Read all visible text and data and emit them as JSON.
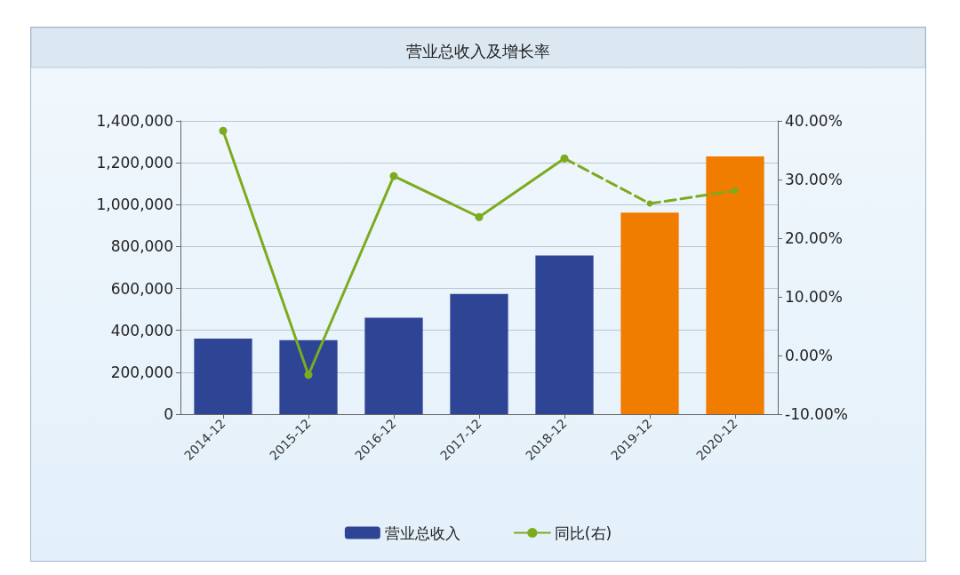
{
  "chart_data": {
    "type": "bar",
    "title": "营业总收入及增长率",
    "categories": [
      "2014-12",
      "2015-12",
      "2016-12",
      "2017-12",
      "2018-12",
      "2019-12",
      "2020-12"
    ],
    "series": [
      {
        "name": "营业总收入",
        "color": "#2e4596",
        "colors": [
          "#2e4596",
          "#2e4596",
          "#2e4596",
          "#2e4596",
          "#2e4596",
          "#f07c00",
          "#f07c00"
        ],
        "values": [
          361000,
          353000,
          460000,
          574000,
          757000,
          962000,
          1230000
        ]
      },
      {
        "name": "同比(右)",
        "type": "line",
        "axis": "y2",
        "color": "#7cab1f",
        "line_style": "solid",
        "values": [
          38.3,
          -3.3,
          30.6,
          23.6,
          33.6,
          null,
          null
        ]
      },
      {
        "type": "line",
        "axis": "y2",
        "color": "#7cab1f",
        "line_style": "dashed",
        "values": [
          null,
          null,
          null,
          null,
          33.6,
          25.9,
          28.1
        ]
      }
    ],
    "ylim": [
      0,
      1400000
    ],
    "yticks": [
      0,
      {
        "value": 200000,
        "label": "200,000"
      },
      {
        "value": 400000,
        "label": "400,000"
      },
      {
        "value": 600000,
        "label": "600,000"
      },
      {
        "value": 800000,
        "label": "800,000"
      },
      {
        "value": 1000000,
        "label": "1,000,000"
      },
      {
        "value": 1200000,
        "label": "1,200,000"
      },
      {
        "value": 1400000,
        "label": "1,400,000"
      }
    ],
    "y2lim": [
      -10,
      40
    ],
    "y2ticks": [
      {
        "value": -10,
        "label": "-10.00%"
      },
      {
        "value": 0,
        "label": "0.00%"
      },
      {
        "value": 10,
        "label": "10.00%"
      },
      {
        "value": 20,
        "label": "20.00%"
      },
      {
        "value": 30,
        "label": "30.00%"
      },
      {
        "value": 40,
        "label": "40.00%"
      }
    ],
    "grid": "y",
    "legend": "bottom",
    "marker": "circle"
  }
}
